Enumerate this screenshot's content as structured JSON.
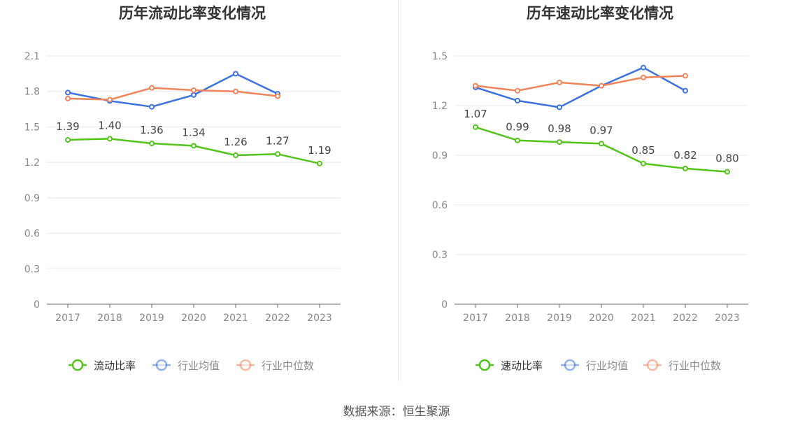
{
  "source": "数据来源：恒生聚源",
  "chart_data": [
    {
      "type": "line",
      "title": "历年流动比率变化情况",
      "categories": [
        "2017",
        "2018",
        "2019",
        "2020",
        "2021",
        "2022",
        "2023"
      ],
      "ylim": [
        0,
        2.1
      ],
      "yticks": [
        0,
        0.3,
        0.6,
        0.9,
        1.2,
        1.5,
        1.8,
        2.1
      ],
      "ytick_labels": [
        "0",
        "0.3",
        "0.6",
        "0.9",
        "1.2",
        "1.5",
        "1.8",
        "2.1"
      ],
      "grid": true,
      "legend_position": "bottom-center",
      "series": [
        {
          "name": "流动比率",
          "color": "#52c41a",
          "labeled": true,
          "values": [
            1.39,
            1.4,
            1.36,
            1.34,
            1.26,
            1.27,
            1.19
          ],
          "labels": [
            "1.39",
            "1.40",
            "1.36",
            "1.34",
            "1.26",
            "1.27",
            "1.19"
          ]
        },
        {
          "name": "行业均值",
          "color": "#3b72e0",
          "labeled": false,
          "values": [
            1.79,
            1.72,
            1.67,
            1.77,
            1.95,
            1.78,
            null
          ]
        },
        {
          "name": "行业中位数",
          "color": "#f0845a",
          "labeled": false,
          "values": [
            1.74,
            1.73,
            1.83,
            1.81,
            1.8,
            1.76,
            null
          ]
        }
      ]
    },
    {
      "type": "line",
      "title": "历年速动比率变化情况",
      "categories": [
        "2017",
        "2018",
        "2019",
        "2020",
        "2021",
        "2022",
        "2023"
      ],
      "ylim": [
        0,
        1.5
      ],
      "yticks": [
        0,
        0.3,
        0.6,
        0.9,
        1.2,
        1.5
      ],
      "ytick_labels": [
        "0",
        "0.3",
        "0.6",
        "0.9",
        "1.2",
        "1.5"
      ],
      "grid": true,
      "legend_position": "bottom-center",
      "series": [
        {
          "name": "速动比率",
          "color": "#52c41a",
          "labeled": true,
          "values": [
            1.07,
            0.99,
            0.98,
            0.97,
            0.85,
            0.82,
            0.8
          ],
          "labels": [
            "1.07",
            "0.99",
            "0.98",
            "0.97",
            "0.85",
            "0.82",
            "0.80"
          ]
        },
        {
          "name": "行业均值",
          "color": "#3b72e0",
          "labeled": false,
          "values": [
            1.31,
            1.23,
            1.19,
            1.32,
            1.43,
            1.29,
            null
          ]
        },
        {
          "name": "行业中位数",
          "color": "#f0845a",
          "labeled": false,
          "values": [
            1.32,
            1.29,
            1.34,
            1.32,
            1.37,
            1.38,
            null
          ]
        }
      ]
    }
  ]
}
